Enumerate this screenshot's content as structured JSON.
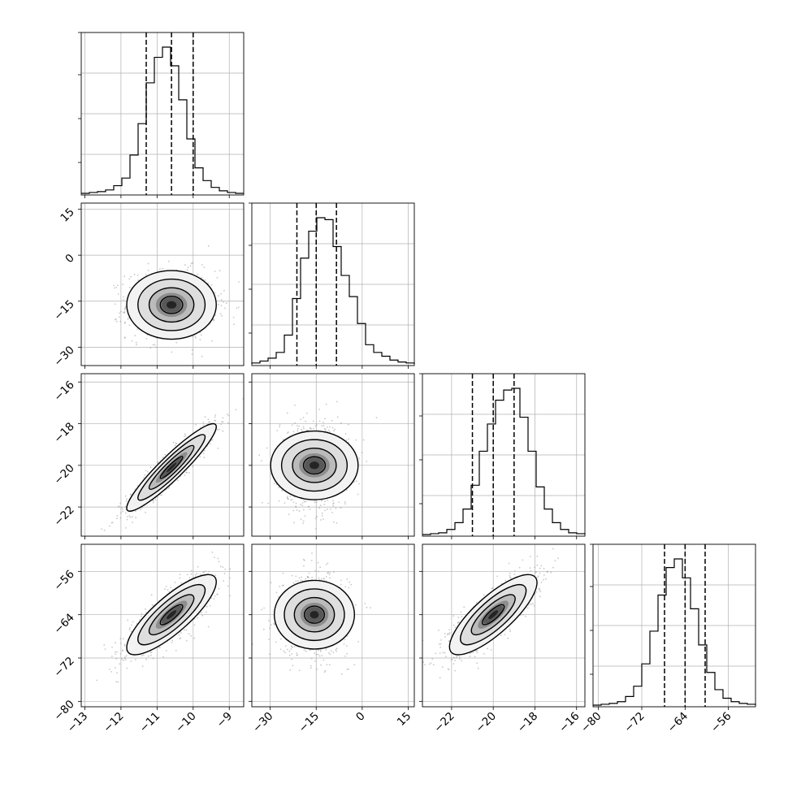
{
  "chart_data": {
    "type": "corner",
    "parameters": [
      {
        "ticks": [
          -13,
          -12,
          -11,
          -10,
          -9
        ],
        "tick_labels": [
          "−13",
          "−12",
          "−11",
          "−10",
          "−9"
        ],
        "range": [
          -13.1,
          -8.6
        ]
      },
      {
        "ticks": [
          -30,
          -15,
          0,
          15
        ],
        "tick_labels": [
          "−30",
          "−15",
          "0",
          "15"
        ],
        "range": [
          -36,
          17
        ]
      },
      {
        "ticks": [
          -22,
          -20,
          -18,
          -16
        ],
        "tick_labels": [
          "−22",
          "−20",
          "−18",
          "−16"
        ],
        "range": [
          -23.4,
          -15.6
        ]
      },
      {
        "ticks": [
          -80,
          -72,
          -64,
          -56
        ],
        "tick_labels": [
          "−80",
          "−72",
          "−64",
          "−56"
        ],
        "range": [
          -81,
          -51
        ]
      }
    ],
    "marginals": [
      {
        "parameter": 0,
        "quantiles": [
          -11.3,
          -10.6,
          -10.0
        ],
        "peak": -10.6,
        "bins": {
          "start": -13.1,
          "width": 0.225,
          "counts": [
            0,
            1,
            2,
            4,
            9,
            18,
            45,
            82,
            130,
            160,
            172,
            150,
            110,
            64,
            30,
            15,
            7,
            3,
            1,
            0
          ]
        }
      },
      {
        "parameter": 1,
        "quantiles": [
          -21.3,
          -15.0,
          -8.4
        ],
        "peak": -15.0,
        "bins": {
          "start": -36,
          "width": 2.65,
          "counts": [
            1,
            3,
            6,
            12,
            30,
            68,
            110,
            138,
            152,
            150,
            122,
            92,
            70,
            42,
            20,
            12,
            8,
            4,
            2,
            1
          ]
        }
      },
      {
        "parameter": 2,
        "quantiles": [
          -21.0,
          -20.0,
          -19.0
        ],
        "peak": -20.0,
        "bins": {
          "start": -23.4,
          "width": 0.39,
          "counts": [
            0,
            1,
            2,
            6,
            14,
            30,
            58,
            98,
            130,
            158,
            170,
            172,
            138,
            98,
            56,
            30,
            14,
            6,
            2,
            1
          ]
        }
      },
      {
        "parameter": 3,
        "quantiles": [
          -67.8,
          -64.0,
          -60.3
        ],
        "peak": -64.0,
        "bins": {
          "start": -81,
          "width": 1.5,
          "counts": [
            0,
            1,
            2,
            4,
            10,
            22,
            48,
            86,
            128,
            160,
            170,
            148,
            112,
            70,
            38,
            18,
            8,
            4,
            2,
            1
          ]
        }
      }
    ],
    "pairs": [
      {
        "x": 0,
        "y": 1,
        "mean": [
          -10.6,
          -16.2
        ],
        "sd": [
          0.62,
          5.6
        ],
        "corr": 0.0
      },
      {
        "x": 0,
        "y": 2,
        "mean": [
          -10.6,
          -20.1
        ],
        "sd": [
          0.62,
          1.05
        ],
        "corr": 0.93
      },
      {
        "x": 1,
        "y": 2,
        "mean": [
          -15.6,
          -20.0
        ],
        "sd": [
          5.6,
          1.05
        ],
        "corr": 0.0
      },
      {
        "x": 0,
        "y": 3,
        "mean": [
          -10.6,
          -64.0
        ],
        "sd": [
          0.62,
          3.7
        ],
        "corr": 0.82
      },
      {
        "x": 1,
        "y": 3,
        "mean": [
          -15.6,
          -64.0
        ],
        "sd": [
          5.6,
          3.7
        ],
        "corr": 0.0
      },
      {
        "x": 2,
        "y": 3,
        "mean": [
          -20.0,
          -64.0
        ],
        "sd": [
          1.05,
          3.7
        ],
        "corr": 0.8
      }
    ],
    "grid": true,
    "contour_levels_sigma": [
      0.5,
      1.0,
      1.5,
      2.0
    ],
    "colors": {
      "line": "#000000",
      "grid": "#b0b0b0",
      "scatter": "#9a9a9a"
    }
  }
}
